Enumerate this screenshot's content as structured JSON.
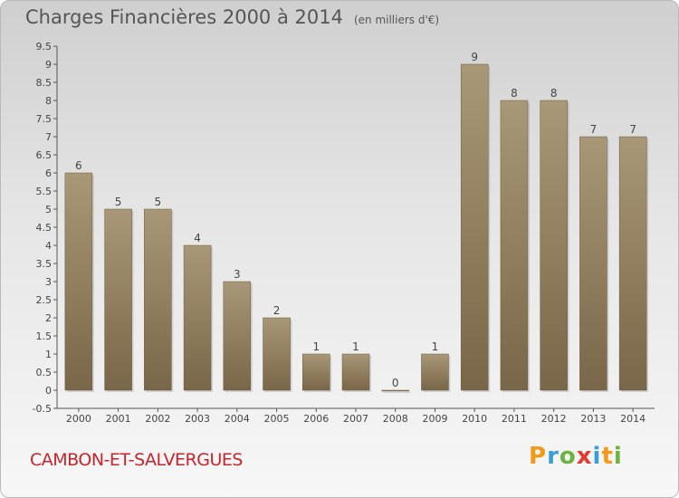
{
  "header": {
    "title": "Charges Financières 2000 à 2014",
    "subtitle": "(en milliers d'€)"
  },
  "footer": {
    "commune": "CAMBON-ET-SALVERGUES",
    "brand": "Proxiti"
  },
  "colors": {
    "bar_top": "#a89877",
    "bar_bottom": "#7a6648",
    "commune_text": "#c8242b"
  },
  "chart_data": {
    "type": "bar",
    "title": "Charges Financières 2000 à 2014",
    "subtitle": "(en milliers d'€)",
    "categories": [
      "2000",
      "2001",
      "2002",
      "2003",
      "2004",
      "2005",
      "2006",
      "2007",
      "2008",
      "2009",
      "2010",
      "2011",
      "2012",
      "2013",
      "2014"
    ],
    "values": [
      6,
      5,
      5,
      4,
      3,
      2,
      1,
      1,
      0,
      1,
      9,
      8,
      8,
      7,
      7
    ],
    "data_labels": [
      "6",
      "5",
      "5",
      "4",
      "3",
      "2",
      "1",
      "1",
      "0",
      "1",
      "9",
      "8",
      "8",
      "7",
      "7"
    ],
    "ylim": [
      -0.5,
      9.5
    ],
    "yticks": [
      "-0.5",
      "0",
      "0.5",
      "1",
      "1.5",
      "2",
      "2.5",
      "3",
      "3.5",
      "4",
      "4.5",
      "5",
      "5.5",
      "6",
      "6.5",
      "7",
      "7.5",
      "8",
      "8.5",
      "9",
      "9.5"
    ],
    "xlabel": "",
    "ylabel": "",
    "grid": false,
    "legend": "none"
  }
}
